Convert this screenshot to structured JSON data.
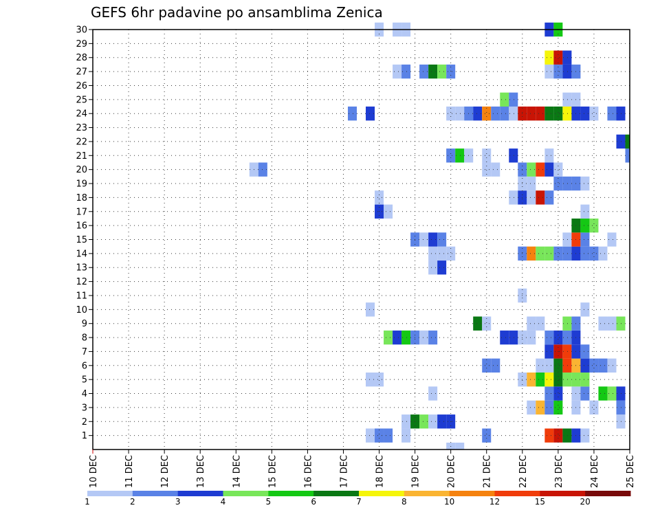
{
  "chart_data": {
    "type": "heatmap",
    "title": "GEFS 6hr padavine po ansamblima Zenica",
    "xlabel": "",
    "ylabel": "",
    "x_unit": "days since 10 DEC",
    "xlim": [
      0,
      15
    ],
    "ylim": [
      0,
      30
    ],
    "x_ticks": [
      {
        "value": 0,
        "label": "10 DEC"
      },
      {
        "value": 1,
        "label": "11 DEC"
      },
      {
        "value": 2,
        "label": "12 DEC"
      },
      {
        "value": 3,
        "label": "13 DEC"
      },
      {
        "value": 4,
        "label": "14 DEC"
      },
      {
        "value": 5,
        "label": "15 DEC"
      },
      {
        "value": 6,
        "label": "16 DEC"
      },
      {
        "value": 7,
        "label": "17 DEC"
      },
      {
        "value": 8,
        "label": "18 DEC"
      },
      {
        "value": 9,
        "label": "19 DEC"
      },
      {
        "value": 10,
        "label": "20 DEC"
      },
      {
        "value": 11,
        "label": "21 DEC"
      },
      {
        "value": 12,
        "label": "22 DEC"
      },
      {
        "value": 13,
        "label": "23 DEC"
      },
      {
        "value": 14,
        "label": "24 DEC"
      },
      {
        "value": 15,
        "label": "25 DEC"
      }
    ],
    "y_ticks": [
      "1",
      "2",
      "3",
      "4",
      "5",
      "6",
      "7",
      "8",
      "9",
      "10",
      "11",
      "12",
      "13",
      "14",
      "15",
      "16",
      "17",
      "18",
      "19",
      "20",
      "21",
      "22",
      "23",
      "24",
      "25",
      "26",
      "27",
      "28",
      "29",
      "30"
    ],
    "grid": true,
    "colorbar": {
      "labels": [
        "1",
        "2",
        "3",
        "4",
        "5",
        "6",
        "7",
        "8",
        "10",
        "12",
        "15",
        "20"
      ],
      "colors": [
        "#b4c8f5",
        "#5a82e6",
        "#1e3cd2",
        "#78e65a",
        "#14c814",
        "#0a7814",
        "#f5f50a",
        "#fab432",
        "#f5820f",
        "#f03c0a",
        "#c81405",
        "#780a0a"
      ]
    },
    "cells": [
      [
        1,
        7.75,
        1
      ],
      [
        1,
        8.0,
        2
      ],
      [
        1,
        8.25,
        2
      ],
      [
        1,
        8.75,
        1
      ],
      [
        1,
        11.0,
        2
      ],
      [
        1,
        12.75,
        10
      ],
      [
        1,
        13.0,
        11
      ],
      [
        1,
        13.25,
        6
      ],
      [
        1,
        13.5,
        3
      ],
      [
        1,
        13.75,
        1
      ],
      [
        2,
        8.75,
        1
      ],
      [
        2,
        9.0,
        6
      ],
      [
        2,
        9.25,
        4
      ],
      [
        2,
        9.5,
        1
      ],
      [
        2,
        9.75,
        3
      ],
      [
        2,
        10.0,
        3
      ],
      [
        2,
        14.75,
        1
      ],
      [
        3,
        12.25,
        1
      ],
      [
        3,
        12.5,
        8
      ],
      [
        3,
        12.75,
        2
      ],
      [
        3,
        13.0,
        5
      ],
      [
        3,
        13.5,
        1
      ],
      [
        3,
        14.0,
        1
      ],
      [
        3,
        14.75,
        2
      ],
      [
        4,
        9.5,
        1
      ],
      [
        4,
        12.75,
        2
      ],
      [
        4,
        13.0,
        3
      ],
      [
        4,
        13.5,
        1
      ],
      [
        4,
        13.75,
        2
      ],
      [
        4,
        14.25,
        5
      ],
      [
        4,
        14.5,
        4
      ],
      [
        4,
        14.75,
        3
      ],
      [
        5,
        7.75,
        1
      ],
      [
        5,
        8.0,
        1
      ],
      [
        5,
        12.0,
        1
      ],
      [
        5,
        12.25,
        8
      ],
      [
        5,
        12.5,
        5
      ],
      [
        5,
        12.75,
        7
      ],
      [
        5,
        13.0,
        6
      ],
      [
        5,
        13.25,
        4
      ],
      [
        5,
        13.5,
        4
      ],
      [
        5,
        13.75,
        4
      ],
      [
        6,
        11.0,
        2
      ],
      [
        6,
        11.25,
        2
      ],
      [
        6,
        12.5,
        1
      ],
      [
        6,
        12.75,
        1
      ],
      [
        6,
        13.0,
        6
      ],
      [
        6,
        13.25,
        10
      ],
      [
        6,
        13.5,
        8
      ],
      [
        6,
        13.75,
        3
      ],
      [
        6,
        14.0,
        2
      ],
      [
        6,
        14.25,
        2
      ],
      [
        6,
        14.5,
        1
      ],
      [
        7,
        12.75,
        3
      ],
      [
        7,
        13.0,
        11
      ],
      [
        7,
        13.25,
        10
      ],
      [
        7,
        13.5,
        3
      ],
      [
        7,
        13.75,
        2
      ],
      [
        8,
        8.25,
        4
      ],
      [
        8,
        8.5,
        3
      ],
      [
        8,
        8.75,
        5
      ],
      [
        8,
        9.0,
        2
      ],
      [
        8,
        9.25,
        1
      ],
      [
        8,
        9.5,
        2
      ],
      [
        8,
        11.5,
        3
      ],
      [
        8,
        11.75,
        3
      ],
      [
        8,
        12.0,
        1
      ],
      [
        8,
        12.25,
        1
      ],
      [
        8,
        12.75,
        2
      ],
      [
        8,
        13.0,
        3
      ],
      [
        8,
        13.25,
        2
      ],
      [
        8,
        13.5,
        3
      ],
      [
        9,
        10.75,
        6
      ],
      [
        9,
        11.0,
        1
      ],
      [
        9,
        12.25,
        1
      ],
      [
        9,
        12.5,
        1
      ],
      [
        9,
        13.25,
        4
      ],
      [
        9,
        13.5,
        2
      ],
      [
        9,
        14.25,
        1
      ],
      [
        9,
        14.5,
        1
      ],
      [
        9,
        14.75,
        4
      ],
      [
        10,
        7.75,
        1
      ],
      [
        10,
        13.75,
        1
      ],
      [
        11,
        12.0,
        1
      ],
      [
        13,
        9.5,
        1
      ],
      [
        13,
        9.75,
        3
      ],
      [
        14,
        9.5,
        1
      ],
      [
        14,
        9.75,
        1
      ],
      [
        14,
        10.0,
        1
      ],
      [
        14,
        12.0,
        2
      ],
      [
        14,
        12.25,
        9
      ],
      [
        14,
        12.5,
        4
      ],
      [
        14,
        12.75,
        4
      ],
      [
        14,
        13.0,
        2
      ],
      [
        14,
        13.25,
        2
      ],
      [
        14,
        13.5,
        3
      ],
      [
        14,
        13.75,
        2
      ],
      [
        14,
        14.0,
        2
      ],
      [
        14,
        14.25,
        1
      ],
      [
        15,
        9.0,
        2
      ],
      [
        15,
        9.25,
        1
      ],
      [
        15,
        9.5,
        3
      ],
      [
        15,
        9.75,
        2
      ],
      [
        15,
        13.25,
        1
      ],
      [
        15,
        13.5,
        10
      ],
      [
        15,
        13.75,
        2
      ],
      [
        15,
        14.5,
        1
      ],
      [
        16,
        13.5,
        6
      ],
      [
        16,
        13.75,
        5
      ],
      [
        16,
        14.0,
        4
      ],
      [
        17,
        8.0,
        3
      ],
      [
        17,
        8.25,
        1
      ],
      [
        17,
        13.75,
        1
      ],
      [
        18,
        8.0,
        1
      ],
      [
        18,
        11.75,
        1
      ],
      [
        18,
        12.0,
        3
      ],
      [
        18,
        12.25,
        1
      ],
      [
        18,
        12.5,
        11
      ],
      [
        18,
        12.75,
        2
      ],
      [
        19,
        12.0,
        1
      ],
      [
        19,
        12.25,
        1
      ],
      [
        19,
        13.0,
        2
      ],
      [
        19,
        13.25,
        2
      ],
      [
        19,
        13.5,
        2
      ],
      [
        19,
        13.75,
        1
      ],
      [
        20,
        4.5,
        1
      ],
      [
        20,
        4.75,
        2
      ],
      [
        20,
        11.0,
        1
      ],
      [
        20,
        11.25,
        1
      ],
      [
        20,
        12.0,
        2
      ],
      [
        20,
        12.25,
        4
      ],
      [
        20,
        12.5,
        10
      ],
      [
        20,
        12.75,
        3
      ],
      [
        20,
        13.0,
        1
      ],
      [
        21,
        10.0,
        2
      ],
      [
        21,
        10.25,
        5
      ],
      [
        21,
        10.5,
        1
      ],
      [
        21,
        11.0,
        1
      ],
      [
        21,
        11.75,
        3
      ],
      [
        21,
        12.75,
        1
      ],
      [
        21,
        15.0,
        2
      ],
      [
        22,
        14.75,
        3
      ],
      [
        22,
        15.0,
        6
      ],
      [
        24,
        7.25,
        2
      ],
      [
        24,
        7.75,
        3
      ],
      [
        24,
        10.0,
        1
      ],
      [
        24,
        10.25,
        1
      ],
      [
        24,
        10.5,
        2
      ],
      [
        24,
        10.75,
        3
      ],
      [
        24,
        11.0,
        9
      ],
      [
        24,
        11.25,
        2
      ],
      [
        24,
        11.5,
        2
      ],
      [
        24,
        11.75,
        1
      ],
      [
        24,
        12.0,
        11
      ],
      [
        24,
        12.25,
        11
      ],
      [
        24,
        12.5,
        11
      ],
      [
        24,
        12.75,
        6
      ],
      [
        24,
        13.0,
        6
      ],
      [
        24,
        13.25,
        7
      ],
      [
        24,
        13.5,
        3
      ],
      [
        24,
        13.75,
        3
      ],
      [
        24,
        14.0,
        1
      ],
      [
        24,
        14.5,
        2
      ],
      [
        24,
        14.75,
        3
      ],
      [
        25,
        11.5,
        4
      ],
      [
        25,
        11.75,
        2
      ],
      [
        25,
        13.25,
        1
      ],
      [
        25,
        13.5,
        1
      ],
      [
        27,
        8.5,
        1
      ],
      [
        27,
        8.75,
        2
      ],
      [
        27,
        9.25,
        2
      ],
      [
        27,
        9.5,
        6
      ],
      [
        27,
        9.75,
        4
      ],
      [
        27,
        10.0,
        2
      ],
      [
        27,
        12.75,
        1
      ],
      [
        27,
        13.0,
        2
      ],
      [
        27,
        13.25,
        3
      ],
      [
        27,
        13.5,
        2
      ],
      [
        28,
        12.75,
        7
      ],
      [
        28,
        13.0,
        11
      ],
      [
        28,
        13.25,
        3
      ],
      [
        30,
        8.0,
        1
      ],
      [
        30,
        8.5,
        1
      ],
      [
        30,
        8.75,
        1
      ],
      [
        30,
        12.75,
        3
      ],
      [
        30,
        13.0,
        5
      ]
    ],
    "below_axis_cells": [
      [
        10.0,
        1
      ],
      [
        10.25,
        1
      ]
    ]
  }
}
